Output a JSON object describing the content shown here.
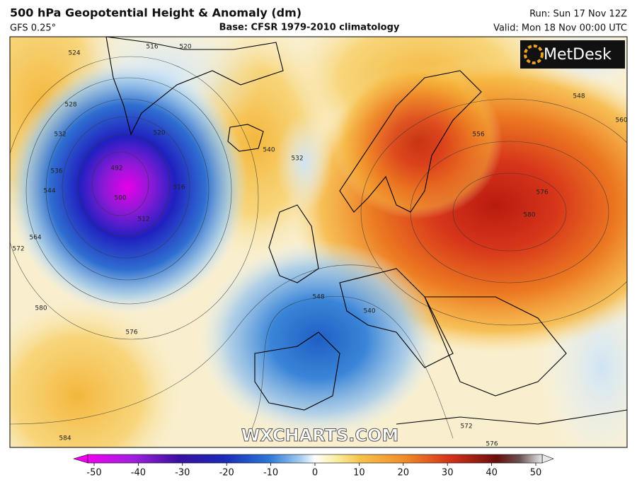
{
  "header": {
    "title": "500 hPa Geopotential Height & Anomaly (dm)",
    "model": "GFS 0.25°",
    "base": "Base: CFSR 1979-2010 climatology",
    "run": "Run: Sun 17 Nov 12Z",
    "valid": "Valid: Mon 18 Nov 00:00 UTC"
  },
  "logo": "MetDesk",
  "watermark": "WXCHARTS.COM",
  "contour_labels": [
    "524",
    "516",
    "520",
    "528",
    "532",
    "536",
    "544",
    "564",
    "572",
    "580",
    "576",
    "584",
    "492",
    "500",
    "512",
    "516",
    "520",
    "532",
    "540",
    "540",
    "548",
    "548",
    "556",
    "560",
    "576",
    "580",
    "572",
    "576"
  ],
  "colorbar": {
    "ticks": [
      -50,
      -40,
      -30,
      -20,
      -10,
      0,
      10,
      20,
      30,
      40,
      50
    ]
  }
}
